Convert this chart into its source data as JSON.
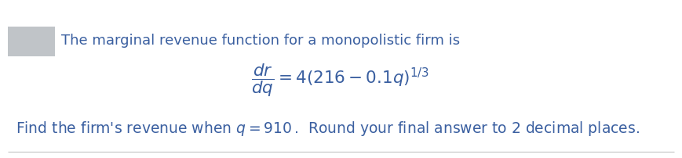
{
  "background_color": "#ffffff",
  "line1_text": "The marginal revenue function for a monopolistic firm is",
  "text_color": "#3a5fa0",
  "formula": "\\dfrac{dr}{dq} = 4(216 - 0.1q)^{1/3}",
  "line3_part1": "Find the firm’s revenue when ",
  "line3_math": "q = 910",
  "line3_part2": ".  Round your final answer to 2 decimal places.",
  "box_color": "#c0c4c8",
  "bottom_line_color": "#c8c8c8",
  "font_size_line1": 13.0,
  "font_size_formula": 15.5,
  "font_size_line3": 13.5
}
